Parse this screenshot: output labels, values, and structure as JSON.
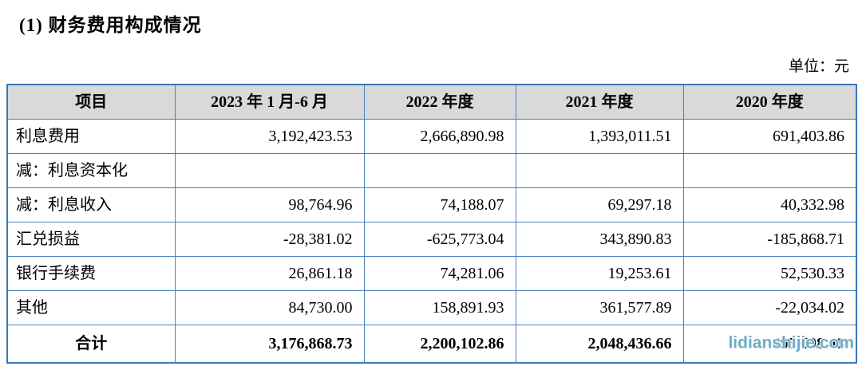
{
  "page": {
    "title": "(1) 财务费用构成情况",
    "unit_label": "单位：元",
    "watermark_text": "lidianshijie.com"
  },
  "colors": {
    "table_border": "#4a80c0",
    "table_outer_border": "#3a76b8",
    "header_background": "#d9d9d9",
    "watermark": "#5aa0be",
    "text": "#000000"
  },
  "table": {
    "headers": [
      "项目",
      "2023 年 1 月-6 月",
      "2022 年度",
      "2021 年度",
      "2020 年度"
    ],
    "rows": [
      {
        "label": "利息费用",
        "values": [
          "3,192,423.53",
          "2,666,890.98",
          "1,393,011.51",
          "691,403.86"
        ]
      },
      {
        "label": "减：利息资本化",
        "values": [
          "",
          "",
          "",
          ""
        ]
      },
      {
        "label": "减：利息收入",
        "values": [
          "98,764.96",
          "74,188.07",
          "69,297.18",
          "40,332.98"
        ]
      },
      {
        "label": "汇兑损益",
        "values": [
          "-28,381.02",
          "-625,773.04",
          "343,890.83",
          "-185,868.71"
        ]
      },
      {
        "label": "银行手续费",
        "values": [
          "26,861.18",
          "74,281.06",
          "19,253.61",
          "52,530.33"
        ]
      },
      {
        "label": "其他",
        "values": [
          "84,730.00",
          "158,891.93",
          "361,577.89",
          "-22,034.02"
        ]
      }
    ],
    "total_row": {
      "label": "合计",
      "values": [
        "3,176,868.73",
        "2,200,102.86",
        "2,048,436.66",
        "495,698.48"
      ]
    }
  }
}
